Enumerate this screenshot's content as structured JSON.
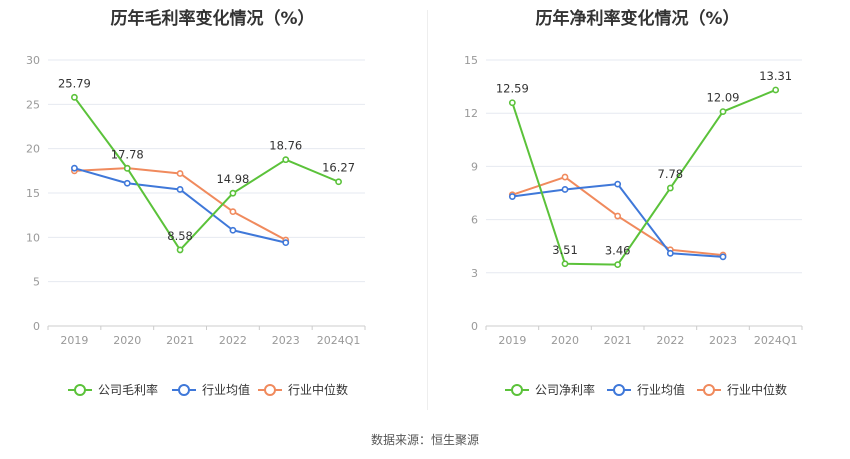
{
  "charts": [
    {
      "title": "历年毛利率变化情况（%）",
      "legend": [
        "公司毛利率",
        "行业均值",
        "行业中位数"
      ]
    },
    {
      "title": "历年净利率变化情况（%）",
      "legend": [
        "公司净利率",
        "行业均值",
        "行业中位数"
      ]
    }
  ],
  "source": "数据来源：恒生聚源",
  "colors": {
    "company": "#5bc23a",
    "average": "#3f78d9",
    "median": "#f08a5d",
    "grid": "#e6e9f0",
    "axis": "#999999"
  },
  "chart_data": [
    {
      "type": "line",
      "title": "历年毛利率变化情况（%）",
      "categories": [
        "2019",
        "2020",
        "2021",
        "2022",
        "2023",
        "2024Q1"
      ],
      "ylim": [
        0,
        30
      ],
      "yticks": [
        0,
        5,
        10,
        15,
        20,
        25,
        30
      ],
      "grid": true,
      "legend_position": "bottom",
      "series": [
        {
          "name": "公司毛利率",
          "values": [
            25.79,
            17.78,
            8.58,
            14.98,
            18.76,
            16.27
          ],
          "labels": [
            "25.79",
            "17.78",
            "8.58",
            "14.98",
            "18.76",
            "16.27"
          ]
        },
        {
          "name": "行业均值",
          "values": [
            17.8,
            16.1,
            15.4,
            10.8,
            9.4,
            null
          ]
        },
        {
          "name": "行业中位数",
          "values": [
            17.5,
            17.8,
            17.2,
            12.9,
            9.7,
            null
          ]
        }
      ]
    },
    {
      "type": "line",
      "title": "历年净利率变化情况（%）",
      "categories": [
        "2019",
        "2020",
        "2021",
        "2022",
        "2023",
        "2024Q1"
      ],
      "ylim": [
        0,
        15
      ],
      "yticks": [
        0,
        3,
        6,
        9,
        12,
        15
      ],
      "grid": true,
      "legend_position": "bottom",
      "series": [
        {
          "name": "公司净利率",
          "values": [
            12.59,
            3.51,
            3.46,
            7.78,
            12.09,
            13.31
          ],
          "labels": [
            "12.59",
            "3.51",
            "3.46",
            "7.78",
            "12.09",
            "13.31"
          ]
        },
        {
          "name": "行业均值",
          "values": [
            7.3,
            7.7,
            8.0,
            4.1,
            3.9,
            null
          ]
        },
        {
          "name": "行业中位数",
          "values": [
            7.4,
            8.4,
            6.2,
            4.3,
            4.0,
            null
          ]
        }
      ]
    }
  ]
}
